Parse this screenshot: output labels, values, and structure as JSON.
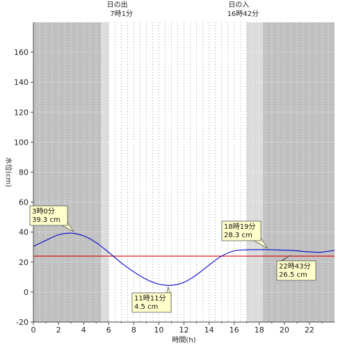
{
  "chart_data": {
    "type": "line",
    "xlabel": "時間(h)",
    "ylabel": "水位(cm)",
    "xlim": [
      0,
      24
    ],
    "ylim": [
      -20,
      180
    ],
    "x_ticks": [
      0,
      2,
      4,
      6,
      8,
      10,
      12,
      14,
      16,
      18,
      20,
      22
    ],
    "y_ticks": [
      -20,
      0,
      20,
      40,
      60,
      80,
      100,
      120,
      140,
      160
    ],
    "grid": true,
    "sunrise": {
      "label_top": "日の出",
      "label_time": "7時1分",
      "hour": 7.017
    },
    "sunset": {
      "label_top": "日の入",
      "label_time": "16時42分",
      "hour": 16.7
    },
    "night_shading": [
      {
        "from": 0,
        "to": 5.4,
        "shade": "dark"
      },
      {
        "from": 5.4,
        "to": 6.0,
        "shade": "twilight"
      },
      {
        "from": 17.0,
        "to": 18.3,
        "shade": "twilight"
      },
      {
        "from": 18.3,
        "to": 24,
        "shade": "dark"
      }
    ],
    "reference_line": {
      "y": 24,
      "color": "#e00000"
    },
    "series": [
      {
        "color": "#0000cc",
        "x": [
          0,
          1,
          2,
          3,
          4,
          5,
          6,
          7,
          8,
          9,
          10,
          11,
          12,
          13,
          14,
          15,
          16,
          17,
          18,
          18.32,
          19,
          20,
          21,
          22,
          22.72,
          23,
          24
        ],
        "y": [
          30.5,
          34.5,
          38.2,
          39.3,
          37.5,
          33.0,
          26.5,
          19.5,
          13.5,
          8.5,
          5.3,
          4.5,
          6.5,
          11.5,
          18.0,
          24.0,
          27.5,
          28.2,
          28.3,
          28.3,
          28.2,
          28.0,
          27.5,
          26.8,
          26.5,
          26.7,
          27.8
        ]
      }
    ],
    "annotations": [
      {
        "time": "3時0分",
        "value": "39.3 cm",
        "x": 3.0,
        "y": 39.3
      },
      {
        "time": "11時11分",
        "value": "4.5 cm",
        "x": 11.18,
        "y": 4.5
      },
      {
        "time": "18時19分",
        "value": "28.3 cm",
        "x": 18.32,
        "y": 28.3
      },
      {
        "time": "22時43分",
        "value": "26.5 cm",
        "x": 22.72,
        "y": 26.5
      }
    ]
  }
}
